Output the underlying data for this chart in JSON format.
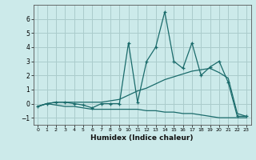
{
  "xlabel": "Humidex (Indice chaleur)",
  "bg_color": "#cceaea",
  "grid_color": "#aacccc",
  "line_color": "#1a6b6b",
  "xlim": [
    -0.5,
    23.5
  ],
  "ylim": [
    -1.5,
    7.0
  ],
  "yticks": [
    -1,
    0,
    1,
    2,
    3,
    4,
    5,
    6
  ],
  "xticks": [
    0,
    1,
    2,
    3,
    4,
    5,
    6,
    7,
    8,
    9,
    10,
    11,
    12,
    13,
    14,
    15,
    16,
    17,
    18,
    19,
    20,
    21,
    22,
    23
  ],
  "x_data": [
    0,
    1,
    2,
    3,
    4,
    5,
    6,
    7,
    8,
    9,
    10,
    11,
    12,
    13,
    14,
    15,
    16,
    17,
    18,
    19,
    20,
    21,
    22,
    23
  ],
  "y_main": [
    -0.2,
    0.0,
    0.1,
    0.1,
    0.0,
    -0.1,
    -0.3,
    0.0,
    0.0,
    0.0,
    4.3,
    0.1,
    3.0,
    4.0,
    6.5,
    3.0,
    2.5,
    4.3,
    2.0,
    2.6,
    3.0,
    1.5,
    -0.9,
    -0.9
  ],
  "y_upper": [
    -0.2,
    0.0,
    0.1,
    0.1,
    0.1,
    0.1,
    0.1,
    0.1,
    0.2,
    0.3,
    0.6,
    0.9,
    1.1,
    1.4,
    1.7,
    1.9,
    2.1,
    2.3,
    2.4,
    2.5,
    2.2,
    1.8,
    -0.7,
    -0.9
  ],
  "y_lower": [
    -0.2,
    0.0,
    -0.1,
    -0.2,
    -0.2,
    -0.3,
    -0.4,
    -0.4,
    -0.4,
    -0.4,
    -0.4,
    -0.4,
    -0.5,
    -0.5,
    -0.6,
    -0.6,
    -0.7,
    -0.7,
    -0.8,
    -0.9,
    -1.0,
    -1.0,
    -1.0,
    -1.0
  ]
}
